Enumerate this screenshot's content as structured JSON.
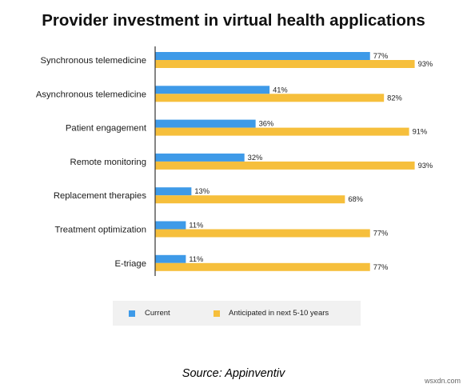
{
  "chart_data": {
    "type": "bar",
    "orientation": "horizontal",
    "title": "Provider investment in virtual health applications",
    "categories": [
      "Synchronous telemedicine",
      "Asynchronous telemedicine",
      "Patient engagement",
      "Remote monitoring",
      "Replacement therapies",
      "Treatment optimization",
      "E-triage"
    ],
    "series": [
      {
        "name": "Current",
        "values": [
          77,
          41,
          36,
          32,
          13,
          11,
          11
        ],
        "color": "#3e9ae8"
      },
      {
        "name": "Anticipated in next 5-10 years",
        "values": [
          93,
          82,
          91,
          93,
          68,
          77,
          77
        ],
        "color": "#f6bf3c"
      }
    ],
    "value_suffix": "%",
    "xlim": [
      0,
      100
    ],
    "grid": false,
    "legend_position": "bottom"
  },
  "caption": "Source: Appinventiv",
  "watermark": "wsxdn.com"
}
